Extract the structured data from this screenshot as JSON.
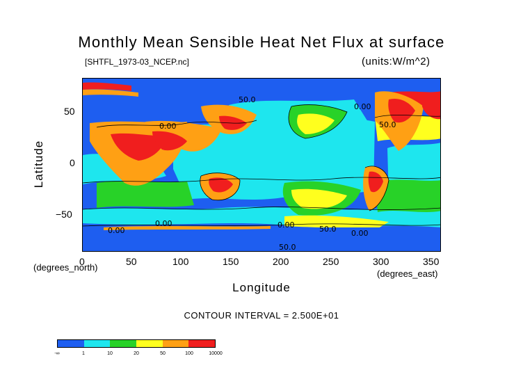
{
  "title": "Monthly Mean Sensible Heat Net Flux at surface",
  "file_label": "[SHTFL_1973-03_NCEP.nc]",
  "units_label": "(units:W/m^2)",
  "y_axis": {
    "label": "Latitude",
    "units": "(degrees_north)",
    "ticks": [
      "50",
      "0",
      "−50"
    ]
  },
  "x_axis": {
    "label": "Longitude",
    "units": "(degrees_east)",
    "ticks": [
      "0",
      "50",
      "100",
      "150",
      "200",
      "250",
      "300",
      "350"
    ]
  },
  "contour_interval": "CONTOUR INTERVAL = 2.500E+01",
  "contour_labels": [
    "50.0",
    "50.0",
    "50.0",
    "0.00",
    "0.00",
    "0.00",
    "0.00",
    "0.00",
    "0.00",
    "50.0"
  ],
  "colorbar": {
    "labels": [
      "-∞",
      "1",
      "10",
      "20",
      "50",
      "100",
      "10000"
    ],
    "colors": [
      "#1e5ef0",
      "#1ee6ee",
      "#28d228",
      "#ffff1e",
      "#ffa014",
      "#f01e1e"
    ]
  },
  "colors": {
    "ocean_low": "#1e5ef0",
    "cyan": "#1ee6ee",
    "green": "#28d228",
    "yellow": "#ffff1e",
    "orange": "#ffa014",
    "red": "#f01e1e"
  }
}
